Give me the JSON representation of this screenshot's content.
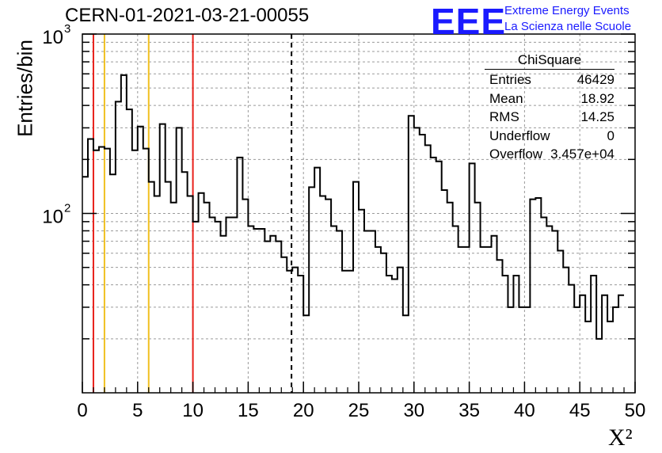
{
  "header": {
    "title": "CERN-01-2021-03-21-00055",
    "logo_text": "EEE",
    "logo_line1": "Extreme Energy Events",
    "logo_line2": "La Scienza nelle Scuole"
  },
  "stats_box": {
    "title": "ChiSquare",
    "rows": [
      {
        "label": "Entries",
        "value": "46429"
      },
      {
        "label": "Mean",
        "value": "18.92"
      },
      {
        "label": "RMS",
        "value": "14.25"
      },
      {
        "label": "Underflow",
        "value": "0"
      },
      {
        "label": "Overflow",
        "value": "3.457e+04"
      }
    ]
  },
  "colors": {
    "histogram": "#000000",
    "red_lines": "#e8201a",
    "yellow_lines": "#f0c020",
    "grid": "#9a9a9a",
    "logo": "#1a1aff"
  },
  "chart_data": {
    "type": "histogram",
    "title": "CERN-01-2021-03-21-00055",
    "xlabel": "X²",
    "ylabel": "Entries/bin",
    "xlim": [
      0,
      50
    ],
    "ylim": [
      10,
      1000
    ],
    "yscale": "log",
    "grid": true,
    "x_ticks": [
      "0",
      "5",
      "10",
      "15",
      "20",
      "25",
      "30",
      "35",
      "40",
      "45",
      "50"
    ],
    "y_tick_labels": [
      {
        "value": 100,
        "base": "10",
        "exp": "2"
      },
      {
        "value": 1000,
        "base": "10",
        "exp": "3"
      }
    ],
    "bin_width": 0.5,
    "bin_start": 0,
    "counts": [
      160,
      260,
      225,
      235,
      230,
      165,
      420,
      590,
      380,
      225,
      305,
      230,
      150,
      125,
      315,
      150,
      115,
      300,
      170,
      125,
      90,
      130,
      115,
      95,
      90,
      75,
      95,
      95,
      205,
      120,
      85,
      82,
      82,
      70,
      75,
      70,
      57,
      48,
      50,
      45,
      27,
      140,
      180,
      125,
      120,
      85,
      80,
      48,
      48,
      150,
      105,
      80,
      80,
      65,
      60,
      45,
      43,
      50,
      27,
      350,
      300,
      275,
      240,
      205,
      195,
      135,
      115,
      85,
      65,
      65,
      190,
      115,
      65,
      65,
      75,
      55,
      45,
      30,
      45,
      30,
      30,
      120,
      122,
      95,
      85,
      80,
      62,
      50,
      40,
      30,
      35,
      25,
      45,
      20,
      35,
      25,
      30,
      35
    ],
    "vertical_lines": [
      {
        "x": 1,
        "color": "red",
        "style": "solid"
      },
      {
        "x": 2,
        "color": "yellow",
        "style": "solid"
      },
      {
        "x": 6,
        "color": "yellow",
        "style": "solid"
      },
      {
        "x": 10,
        "color": "red",
        "style": "solid"
      },
      {
        "x": 18.92,
        "color": "black",
        "style": "dashed"
      }
    ],
    "legend": "top-right stats box"
  }
}
